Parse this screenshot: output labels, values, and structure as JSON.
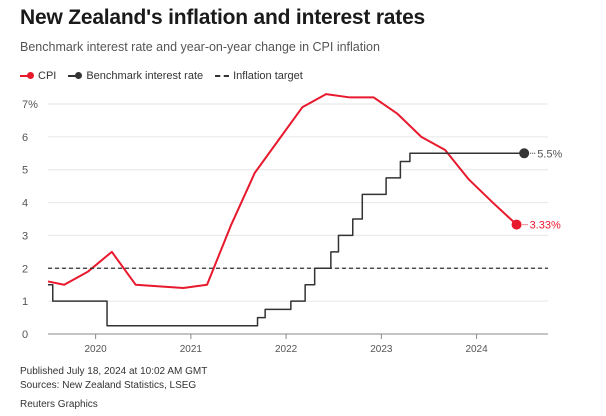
{
  "title": "New Zealand's inflation and interest rates",
  "subtitle": "Benchmark interest rate and year-on-year change in CPI inflation",
  "legend": [
    {
      "label": "CPI",
      "color": "#e8192c",
      "style": "line-dot"
    },
    {
      "label": "Benchmark interest rate",
      "color": "#333333",
      "style": "line-dot"
    },
    {
      "label": "Inflation target",
      "color": "#333333",
      "style": "dashed"
    }
  ],
  "footer": {
    "published": "Published July 18, 2024 at 10:02 AM GMT",
    "sources": "Sources: New Zealand Statistics, LSEG",
    "credit": "Reuters Graphics"
  },
  "chart_data": {
    "type": "line",
    "ylim": [
      0,
      7
    ],
    "xlim": [
      2019.5,
      2024.75
    ],
    "yticks": [
      0,
      1,
      2,
      3,
      4,
      5,
      6,
      7
    ],
    "ytick_labels": [
      "0",
      "1",
      "2",
      "3",
      "4",
      "5",
      "6",
      "7%"
    ],
    "xticks": [
      2020,
      2021,
      2022,
      2023,
      2024
    ],
    "xtick_labels": [
      "2020",
      "2021",
      "2022",
      "2023",
      "2024"
    ],
    "grid": "horizontal",
    "series": [
      {
        "name": "CPI",
        "color": "#e8192c",
        "step": false,
        "x": [
          2019.5,
          2019.67,
          2019.92,
          2020.17,
          2020.42,
          2020.92,
          2021.17,
          2021.42,
          2021.67,
          2021.92,
          2022.17,
          2022.42,
          2022.67,
          2022.92,
          2023.17,
          2023.42,
          2023.67,
          2023.92,
          2024.17,
          2024.42
        ],
        "y": [
          1.6,
          1.5,
          1.9,
          2.5,
          1.5,
          1.4,
          1.5,
          3.3,
          4.9,
          5.9,
          6.9,
          7.3,
          7.2,
          7.2,
          6.7,
          6.0,
          5.6,
          4.7,
          4.0,
          3.33
        ],
        "end_label": "3.33%"
      },
      {
        "name": "Benchmark interest rate",
        "color": "#333333",
        "step": true,
        "x": [
          2019.5,
          2019.55,
          2020.12,
          2021.7,
          2021.78,
          2021.85,
          2022.05,
          2022.2,
          2022.3,
          2022.47,
          2022.55,
          2022.7,
          2022.8,
          2023.05,
          2023.2,
          2023.3,
          2024.5
        ],
        "y": [
          1.5,
          1.0,
          0.25,
          0.5,
          0.75,
          0.75,
          1.0,
          1.5,
          2.0,
          2.5,
          3.0,
          3.5,
          4.25,
          4.75,
          5.25,
          5.5,
          5.5
        ],
        "end_label": "5.5%"
      },
      {
        "name": "Inflation target",
        "color": "#333333",
        "dashed": true,
        "value": 2
      }
    ]
  }
}
